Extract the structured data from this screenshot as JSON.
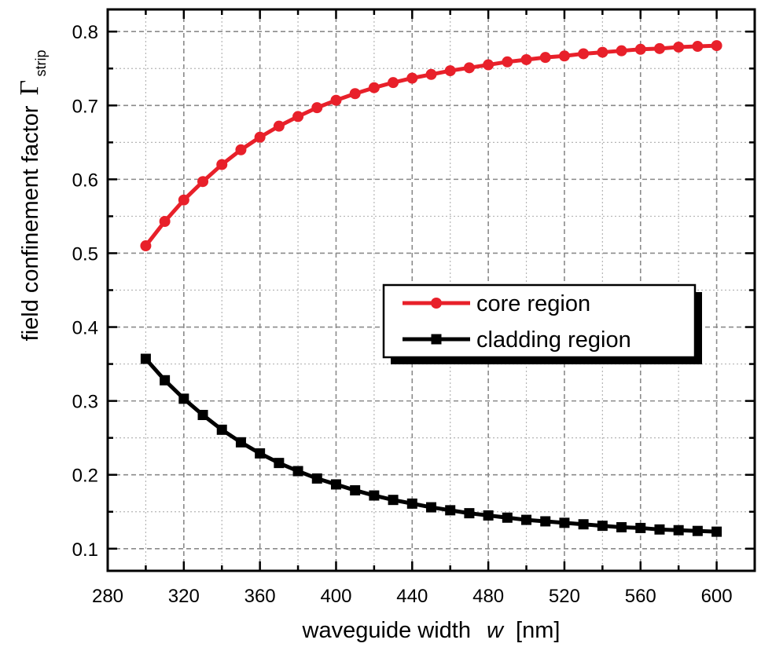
{
  "chart_data": {
    "type": "line",
    "xlabel": {
      "main": "waveguide width",
      "variable": "w",
      "unit": "[nm]"
    },
    "ylabel": {
      "main": "field confinement factor",
      "symbol": "Γ",
      "subscript": "strip"
    },
    "xlim": [
      280,
      620
    ],
    "ylim": [
      0.07,
      0.83
    ],
    "x_ticks": [
      280,
      320,
      360,
      400,
      440,
      480,
      520,
      560,
      600
    ],
    "y_ticks": [
      0.1,
      0.2,
      0.3,
      0.4,
      0.5,
      0.6,
      0.7,
      0.8
    ],
    "x_minor_step": 20,
    "y_minor_step": 0.05,
    "grid": true,
    "legend_position": "center-right",
    "x": [
      300,
      310,
      320,
      330,
      340,
      350,
      360,
      370,
      380,
      390,
      400,
      410,
      420,
      430,
      440,
      450,
      460,
      470,
      480,
      490,
      500,
      510,
      520,
      530,
      540,
      550,
      560,
      570,
      580,
      590,
      600
    ],
    "series": [
      {
        "name": "core region",
        "color": "#e8202a",
        "marker": "circle",
        "values": [
          0.51,
          0.543,
          0.572,
          0.597,
          0.62,
          0.64,
          0.657,
          0.672,
          0.685,
          0.697,
          0.707,
          0.716,
          0.724,
          0.731,
          0.737,
          0.742,
          0.747,
          0.751,
          0.755,
          0.759,
          0.762,
          0.765,
          0.767,
          0.77,
          0.772,
          0.774,
          0.776,
          0.777,
          0.779,
          0.78,
          0.781
        ]
      },
      {
        "name": "cladding region",
        "color": "#000000",
        "marker": "square",
        "values": [
          0.357,
          0.328,
          0.303,
          0.281,
          0.261,
          0.244,
          0.229,
          0.216,
          0.205,
          0.195,
          0.187,
          0.179,
          0.172,
          0.166,
          0.161,
          0.156,
          0.152,
          0.148,
          0.145,
          0.142,
          0.139,
          0.137,
          0.135,
          0.133,
          0.131,
          0.129,
          0.128,
          0.126,
          0.125,
          0.124,
          0.123
        ]
      }
    ]
  }
}
